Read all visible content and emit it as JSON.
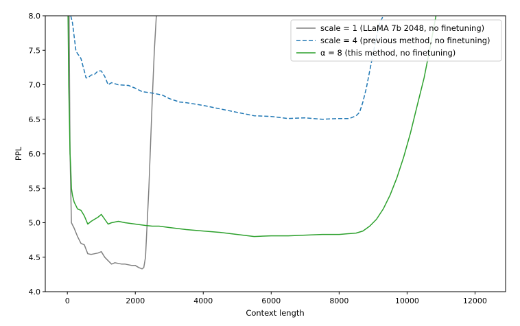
{
  "chart_data": {
    "type": "line",
    "title": "",
    "xlabel": "Context length",
    "ylabel": "PPL",
    "xlim": [
      -650,
      12900
    ],
    "ylim": [
      4.0,
      8.0
    ],
    "xticks": [
      0,
      2000,
      4000,
      6000,
      8000,
      10000,
      12000
    ],
    "xtick_labels": [
      "0",
      "2000",
      "4000",
      "6000",
      "8000",
      "10000",
      "12000"
    ],
    "yticks": [
      4.0,
      4.5,
      5.0,
      5.5,
      6.0,
      6.5,
      7.0,
      7.5,
      8.0
    ],
    "ytick_labels": [
      "4.0",
      "4.5",
      "5.0",
      "5.5",
      "6.0",
      "6.5",
      "7.0",
      "7.5",
      "8.0"
    ],
    "grid": false,
    "legend_position": "top-right",
    "series": [
      {
        "name": "scale = 1 (LLaMA 7b 2048, no finetuning)",
        "color": "#808080",
        "style": "solid",
        "x": [
          50,
          80,
          120,
          200,
          300,
          400,
          500,
          600,
          700,
          800,
          900,
          1000,
          1100,
          1200,
          1300,
          1400,
          1500,
          1600,
          1700,
          1800,
          1900,
          2000,
          2100,
          2150,
          2200,
          2250,
          2300,
          2400,
          2500,
          2560,
          2620
        ],
        "y": [
          8.0,
          6.0,
          5.0,
          4.92,
          4.8,
          4.7,
          4.68,
          4.55,
          4.54,
          4.55,
          4.56,
          4.58,
          4.5,
          4.45,
          4.4,
          4.42,
          4.41,
          4.4,
          4.4,
          4.39,
          4.38,
          4.38,
          4.35,
          4.34,
          4.33,
          4.35,
          4.5,
          5.5,
          6.8,
          7.5,
          8.0
        ]
      },
      {
        "name": "scale = 4 (previous method, no finetuning)",
        "color": "#1f77b4",
        "style": "dashed",
        "x": [
          100,
          150,
          200,
          250,
          300,
          350,
          400,
          500,
          550,
          600,
          700,
          800,
          900,
          1000,
          1100,
          1200,
          1300,
          1500,
          1800,
          2000,
          2200,
          2500,
          2800,
          3000,
          3300,
          3500,
          4000,
          4500,
          5000,
          5500,
          6000,
          6500,
          7000,
          7500,
          8000,
          8300,
          8500,
          8600,
          8700,
          8800,
          8900,
          9000,
          9100,
          9200,
          9300
        ],
        "y": [
          8.0,
          7.9,
          7.7,
          7.5,
          7.45,
          7.42,
          7.38,
          7.2,
          7.1,
          7.1,
          7.14,
          7.15,
          7.2,
          7.2,
          7.12,
          7.0,
          7.03,
          7.0,
          6.99,
          6.95,
          6.9,
          6.88,
          6.85,
          6.8,
          6.75,
          6.74,
          6.7,
          6.65,
          6.6,
          6.55,
          6.54,
          6.51,
          6.52,
          6.5,
          6.51,
          6.51,
          6.55,
          6.6,
          6.75,
          6.95,
          7.2,
          7.45,
          7.7,
          7.9,
          8.0
        ]
      },
      {
        "name": "α = 8 (this method, no finetuning)",
        "color": "#2ca02c",
        "style": "solid",
        "x": [
          20,
          40,
          60,
          80,
          100,
          120,
          150,
          200,
          250,
          300,
          400,
          500,
          600,
          700,
          800,
          900,
          1000,
          1100,
          1200,
          1300,
          1500,
          1700,
          2000,
          2300,
          2500,
          2700,
          3000,
          3500,
          4000,
          4500,
          5000,
          5500,
          6000,
          6500,
          7000,
          7500,
          8000,
          8500,
          8700,
          8900,
          9100,
          9300,
          9500,
          9700,
          9900,
          10100,
          10300,
          10500,
          10700,
          10850
        ],
        "y": [
          8.0,
          7.0,
          6.5,
          6.0,
          5.8,
          5.5,
          5.4,
          5.3,
          5.25,
          5.2,
          5.18,
          5.1,
          4.98,
          5.02,
          5.05,
          5.08,
          5.12,
          5.05,
          4.98,
          5.0,
          5.02,
          5.0,
          4.98,
          4.96,
          4.95,
          4.95,
          4.93,
          4.9,
          4.88,
          4.86,
          4.83,
          4.8,
          4.81,
          4.81,
          4.82,
          4.83,
          4.83,
          4.85,
          4.88,
          4.95,
          5.05,
          5.2,
          5.4,
          5.65,
          5.95,
          6.3,
          6.7,
          7.1,
          7.6,
          8.0
        ]
      }
    ]
  }
}
